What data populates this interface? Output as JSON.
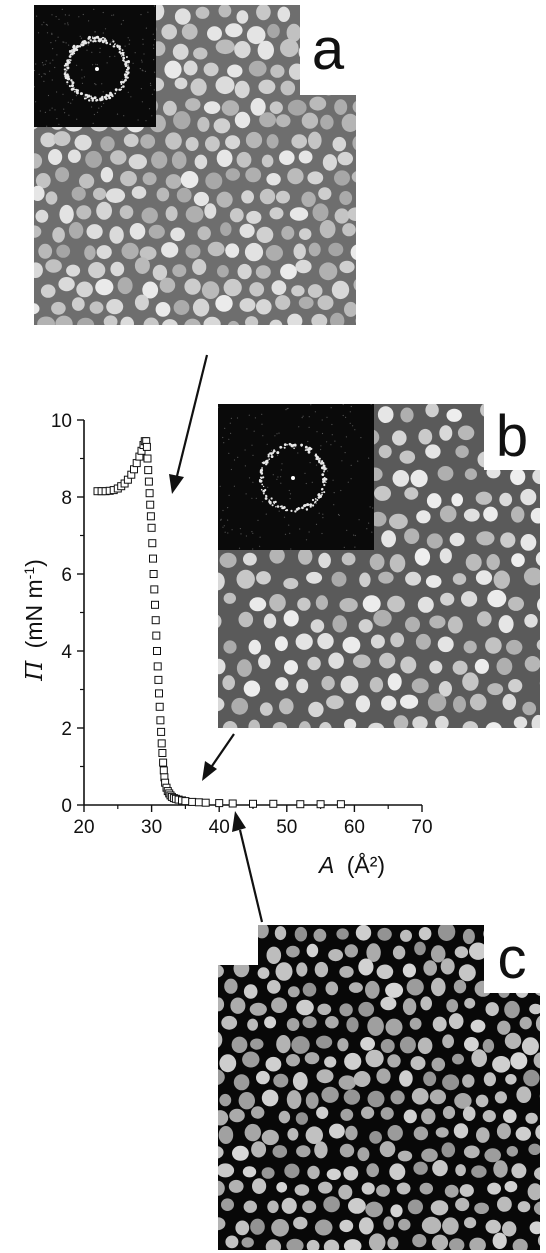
{
  "panels": {
    "a": {
      "label": "a",
      "texture": "bright-particles-on-grey",
      "has_fft_inset": true
    },
    "b": {
      "label": "b",
      "texture": "bright-particles-on-grey",
      "has_fft_inset": true
    },
    "c": {
      "label": "c",
      "texture": "bright-particles-on-black",
      "has_fft_inset": false
    }
  },
  "colors": {
    "axis": "#111111",
    "marker_fill": "#ffffff",
    "marker_stroke": "#111111",
    "background": "#ffffff"
  },
  "chart_data": {
    "type": "scatter",
    "marker": "open-square",
    "title": "",
    "xlabel": "A (Å²)",
    "xlabel_parts": {
      "symbol": "A",
      "unit": "(Å²)"
    },
    "ylabel": "Π (mN m⁻¹)",
    "ylabel_parts": {
      "symbol": "Π",
      "unit": "(mN m",
      "exp": "-1",
      "close": ")"
    },
    "xlim": [
      20,
      70
    ],
    "ylim": [
      0,
      10
    ],
    "xticks": [
      20,
      30,
      40,
      50,
      60,
      70
    ],
    "yticks": [
      0,
      2,
      4,
      6,
      8,
      10
    ],
    "series": [
      {
        "x": [
          22.0,
          22.6,
          23.2,
          23.8,
          24.4,
          25.0,
          25.5,
          26.0,
          26.5,
          27.0,
          27.4,
          27.8,
          28.2,
          28.5,
          28.8,
          29.0,
          29.2,
          29.3,
          29.4,
          29.5,
          29.6,
          29.7,
          29.8,
          29.9,
          30.0,
          30.1,
          30.2,
          30.3,
          30.4,
          30.5,
          30.6,
          30.7,
          30.8,
          30.9,
          31.0,
          31.1,
          31.2,
          31.3,
          31.4,
          31.5,
          31.6,
          31.7,
          31.8,
          31.9,
          32.0,
          32.2,
          32.4,
          32.6,
          32.8,
          33.0,
          33.3,
          33.6,
          34.0,
          34.5,
          35.0,
          36.0,
          37.0,
          38.0,
          40.0,
          42.0,
          45.0,
          48.0,
          52.0,
          55.0,
          58.0
        ],
        "y": [
          8.15,
          8.15,
          8.15,
          8.16,
          8.18,
          8.22,
          8.28,
          8.35,
          8.45,
          8.58,
          8.72,
          8.88,
          9.05,
          9.2,
          9.35,
          9.45,
          9.45,
          9.3,
          9.0,
          8.7,
          8.4,
          8.1,
          7.8,
          7.5,
          7.2,
          6.8,
          6.4,
          6.0,
          5.6,
          5.2,
          4.8,
          4.4,
          4.0,
          3.6,
          3.25,
          2.9,
          2.55,
          2.2,
          1.9,
          1.6,
          1.35,
          1.1,
          0.9,
          0.72,
          0.58,
          0.45,
          0.36,
          0.3,
          0.25,
          0.21,
          0.18,
          0.16,
          0.14,
          0.12,
          0.1,
          0.08,
          0.07,
          0.06,
          0.05,
          0.04,
          0.03,
          0.03,
          0.02,
          0.02,
          0.02
        ]
      }
    ]
  }
}
